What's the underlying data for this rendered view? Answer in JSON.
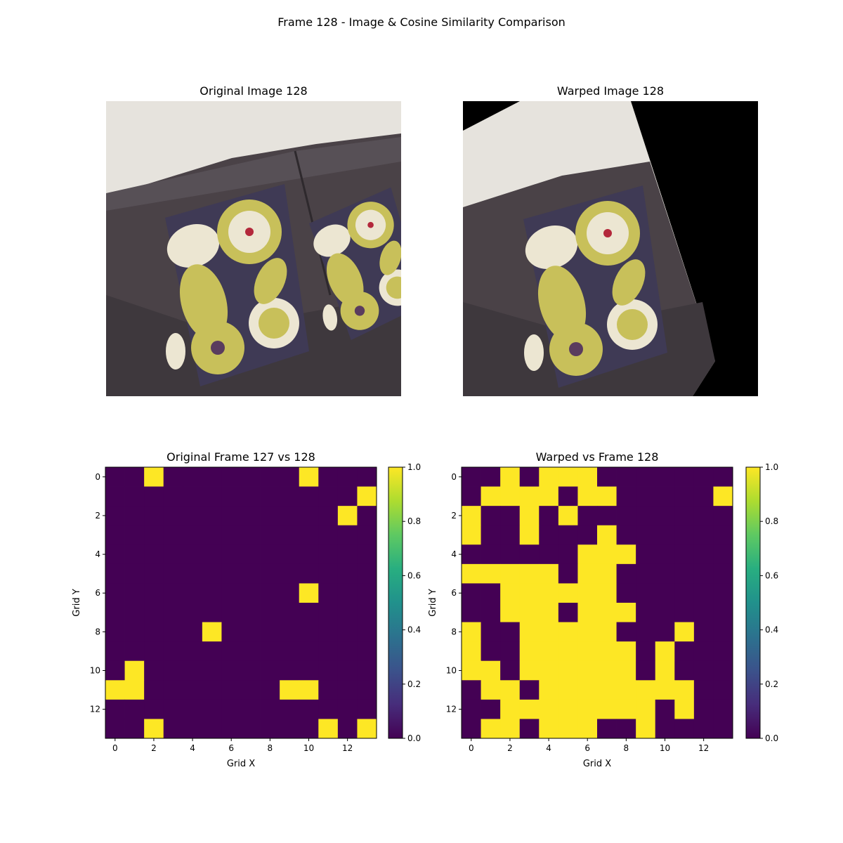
{
  "suptitle": "Frame 128 - Image & Cosine Similarity Comparison",
  "images": {
    "original_title": "Original Image 128",
    "warped_title": "Warped Image 128"
  },
  "colors": {
    "viridis_low": "#440154",
    "viridis_high": "#fde725",
    "wall": "#e6e3dd",
    "sofa": "#4a4247",
    "cushion_purple": "#3f3a55",
    "cushion_yellow": "#c8c05a",
    "cushion_cream": "#ece6d2"
  },
  "chart_data": [
    {
      "type": "heatmap",
      "title": "Original Frame 127 vs 128",
      "xlabel": "Grid X",
      "ylabel": "Grid Y",
      "x_ticks": [
        "0",
        "2",
        "4",
        "6",
        "8",
        "10",
        "12"
      ],
      "y_ticks": [
        "0",
        "2",
        "4",
        "6",
        "8",
        "10",
        "12"
      ],
      "colorbar_ticks": [
        "0.0",
        "0.2",
        "0.4",
        "0.6",
        "0.8",
        "1.0"
      ],
      "vmin": 0,
      "vmax": 1,
      "colormap": "viridis",
      "grid": false,
      "values": [
        [
          0,
          0,
          1,
          0,
          0,
          0,
          0,
          0,
          0,
          0,
          1,
          0,
          0,
          0
        ],
        [
          0,
          0,
          0,
          0,
          0,
          0,
          0,
          0,
          0,
          0,
          0,
          0,
          0,
          1
        ],
        [
          0,
          0,
          0,
          0,
          0,
          0,
          0,
          0,
          0,
          0,
          0,
          0,
          1,
          0
        ],
        [
          0,
          0,
          0,
          0,
          0,
          0,
          0,
          0,
          0,
          0,
          0,
          0,
          0,
          0
        ],
        [
          0,
          0,
          0,
          0,
          0,
          0,
          0,
          0,
          0,
          0,
          0,
          0,
          0,
          0
        ],
        [
          0,
          0,
          0,
          0,
          0,
          0,
          0,
          0,
          0,
          0,
          0,
          0,
          0,
          0
        ],
        [
          0,
          0,
          0,
          0,
          0,
          0,
          0,
          0,
          0,
          0,
          1,
          0,
          0,
          0
        ],
        [
          0,
          0,
          0,
          0,
          0,
          0,
          0,
          0,
          0,
          0,
          0,
          0,
          0,
          0
        ],
        [
          0,
          0,
          0,
          0,
          0,
          1,
          0,
          0,
          0,
          0,
          0,
          0,
          0,
          0
        ],
        [
          0,
          0,
          0,
          0,
          0,
          0,
          0,
          0,
          0,
          0,
          0,
          0,
          0,
          0
        ],
        [
          0,
          1,
          0,
          0,
          0,
          0,
          0,
          0,
          0,
          0,
          0,
          0,
          0,
          0
        ],
        [
          1,
          1,
          0,
          0,
          0,
          0,
          0,
          0,
          0,
          1,
          1,
          0,
          0,
          0
        ],
        [
          0,
          0,
          0,
          0,
          0,
          0,
          0,
          0,
          0,
          0,
          0,
          0,
          0,
          0
        ],
        [
          0,
          0,
          1,
          0,
          0,
          0,
          0,
          0,
          0,
          0,
          0,
          1,
          0,
          1
        ]
      ]
    },
    {
      "type": "heatmap",
      "title": "Warped vs Frame 128",
      "xlabel": "Grid X",
      "ylabel": "Grid Y",
      "x_ticks": [
        "0",
        "2",
        "4",
        "6",
        "8",
        "10",
        "12"
      ],
      "y_ticks": [
        "0",
        "2",
        "4",
        "6",
        "8",
        "10",
        "12"
      ],
      "colorbar_ticks": [
        "0.0",
        "0.2",
        "0.4",
        "0.6",
        "0.8",
        "1.0"
      ],
      "vmin": 0,
      "vmax": 1,
      "colormap": "viridis",
      "grid": false,
      "values": [
        [
          0,
          0,
          1,
          0,
          1,
          1,
          1,
          0,
          0,
          0,
          0,
          0,
          0,
          0
        ],
        [
          0,
          1,
          1,
          1,
          1,
          0,
          1,
          1,
          0,
          0,
          0,
          0,
          0,
          1
        ],
        [
          1,
          0,
          0,
          1,
          0,
          1,
          0,
          0,
          0,
          0,
          0,
          0,
          0,
          0
        ],
        [
          1,
          0,
          0,
          1,
          0,
          0,
          0,
          1,
          0,
          0,
          0,
          0,
          0,
          0
        ],
        [
          0,
          0,
          0,
          0,
          0,
          0,
          1,
          1,
          1,
          0,
          0,
          0,
          0,
          0
        ],
        [
          1,
          1,
          1,
          1,
          1,
          0,
          1,
          1,
          0,
          0,
          0,
          0,
          0,
          0
        ],
        [
          0,
          0,
          1,
          1,
          1,
          1,
          1,
          1,
          0,
          0,
          0,
          0,
          0,
          0
        ],
        [
          0,
          0,
          1,
          1,
          1,
          0,
          1,
          1,
          1,
          0,
          0,
          0,
          0,
          0
        ],
        [
          1,
          0,
          0,
          1,
          1,
          1,
          1,
          1,
          0,
          0,
          0,
          1,
          0,
          0
        ],
        [
          1,
          0,
          0,
          1,
          1,
          1,
          1,
          1,
          1,
          0,
          1,
          0,
          0,
          0
        ],
        [
          1,
          1,
          0,
          1,
          1,
          1,
          1,
          1,
          1,
          0,
          1,
          0,
          0,
          0
        ],
        [
          0,
          1,
          1,
          0,
          1,
          1,
          1,
          1,
          1,
          1,
          1,
          1,
          0,
          0
        ],
        [
          0,
          0,
          1,
          1,
          1,
          1,
          1,
          1,
          1,
          1,
          0,
          1,
          0,
          0
        ],
        [
          0,
          1,
          1,
          0,
          1,
          1,
          1,
          0,
          0,
          1,
          0,
          0,
          0,
          0
        ]
      ]
    }
  ]
}
